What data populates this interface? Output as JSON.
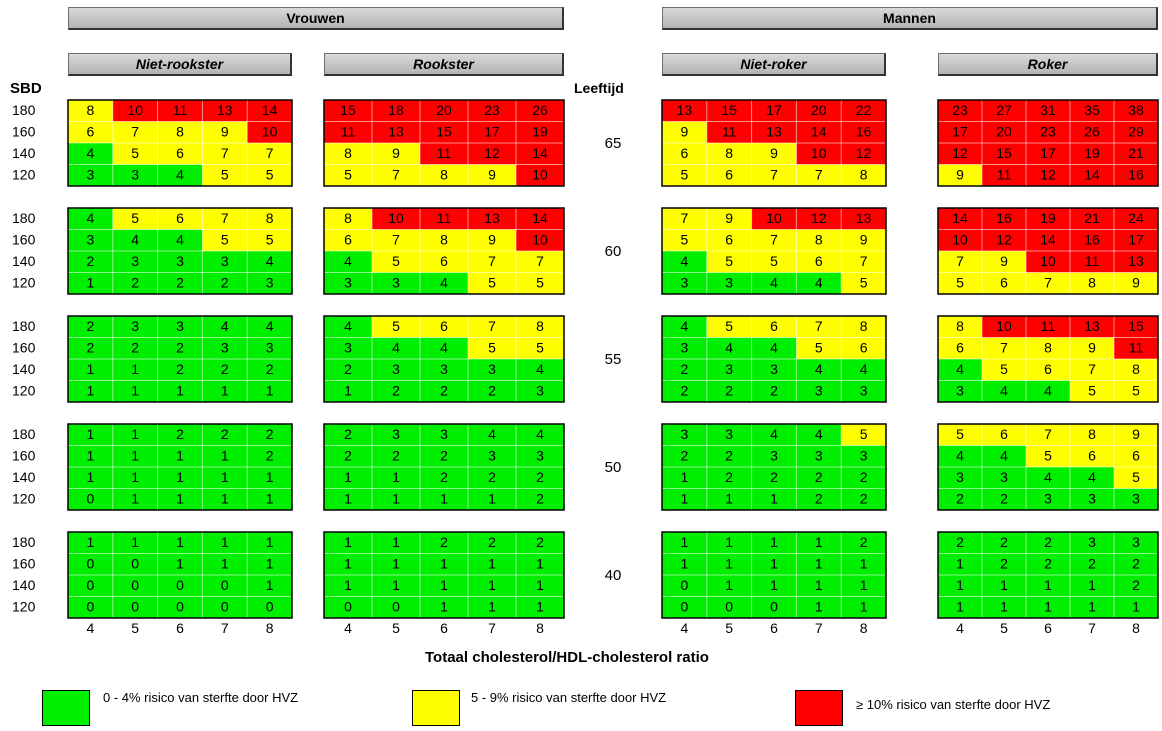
{
  "header": {
    "group_left": "Vrouwen",
    "group_right": "Mannen",
    "sub_1": "Niet-rookster",
    "sub_2": "Rookster",
    "sub_3": "Niet-roker",
    "sub_4": "Roker",
    "sbd_label": "SBD",
    "age_label": "Leeftijd",
    "xlabel": "Totaal cholesterol/HDL-cholesterol ratio"
  },
  "colors": {
    "green": "#00ee00",
    "yellow": "#ffff00",
    "red": "#ff0000"
  },
  "legend": {
    "green": "0 - 4% risico van sterfte door HVZ",
    "yellow": "5 - 9% risico van sterfte door HVZ",
    "red": "≥ 10% risico van sterfte door HVZ"
  },
  "chart_data": {
    "type": "heatmap",
    "x_ticks": [
      4,
      5,
      6,
      7,
      8
    ],
    "sbd_ticks": [
      180,
      160,
      140,
      120
    ],
    "ages": [
      65,
      60,
      55,
      50,
      40
    ],
    "panels": [
      "Niet-rookster",
      "Rookster",
      "Niet-roker",
      "Roker"
    ],
    "values": [
      [
        [
          [
            8,
            10,
            11,
            13,
            14
          ],
          [
            6,
            7,
            8,
            9,
            10
          ],
          [
            4,
            5,
            6,
            7,
            7
          ],
          [
            3,
            3,
            4,
            5,
            5
          ]
        ],
        [
          [
            15,
            18,
            20,
            23,
            26
          ],
          [
            11,
            13,
            15,
            17,
            19
          ],
          [
            8,
            9,
            11,
            12,
            14
          ],
          [
            5,
            7,
            8,
            9,
            10
          ]
        ],
        [
          [
            13,
            15,
            17,
            20,
            22
          ],
          [
            9,
            11,
            13,
            14,
            16
          ],
          [
            6,
            8,
            9,
            10,
            12
          ],
          [
            5,
            6,
            7,
            7,
            8
          ]
        ],
        [
          [
            23,
            27,
            31,
            35,
            38
          ],
          [
            17,
            20,
            23,
            26,
            29
          ],
          [
            12,
            15,
            17,
            19,
            21
          ],
          [
            9,
            11,
            12,
            14,
            16
          ]
        ]
      ],
      [
        [
          [
            4,
            5,
            6,
            7,
            8
          ],
          [
            3,
            4,
            4,
            5,
            5
          ],
          [
            2,
            3,
            3,
            3,
            4
          ],
          [
            1,
            2,
            2,
            2,
            3
          ]
        ],
        [
          [
            8,
            10,
            11,
            13,
            14
          ],
          [
            6,
            7,
            8,
            9,
            10
          ],
          [
            4,
            5,
            6,
            7,
            7
          ],
          [
            3,
            3,
            4,
            5,
            5
          ]
        ],
        [
          [
            7,
            9,
            10,
            12,
            13
          ],
          [
            5,
            6,
            7,
            8,
            9
          ],
          [
            4,
            5,
            5,
            6,
            7
          ],
          [
            3,
            3,
            4,
            4,
            5
          ]
        ],
        [
          [
            14,
            16,
            19,
            21,
            24
          ],
          [
            10,
            12,
            14,
            16,
            17
          ],
          [
            7,
            9,
            10,
            11,
            13
          ],
          [
            5,
            6,
            7,
            8,
            9
          ]
        ]
      ],
      [
        [
          [
            2,
            3,
            3,
            4,
            4
          ],
          [
            2,
            2,
            2,
            3,
            3
          ],
          [
            1,
            1,
            2,
            2,
            2
          ],
          [
            1,
            1,
            1,
            1,
            1
          ]
        ],
        [
          [
            4,
            5,
            6,
            7,
            8
          ],
          [
            3,
            4,
            4,
            5,
            5
          ],
          [
            2,
            3,
            3,
            3,
            4
          ],
          [
            1,
            2,
            2,
            2,
            3
          ]
        ],
        [
          [
            4,
            5,
            6,
            7,
            8
          ],
          [
            3,
            4,
            4,
            5,
            6
          ],
          [
            2,
            3,
            3,
            4,
            4
          ],
          [
            2,
            2,
            2,
            3,
            3
          ]
        ],
        [
          [
            8,
            10,
            11,
            13,
            15
          ],
          [
            6,
            7,
            8,
            9,
            11
          ],
          [
            4,
            5,
            6,
            7,
            8
          ],
          [
            3,
            4,
            4,
            5,
            5
          ]
        ]
      ],
      [
        [
          [
            1,
            1,
            2,
            2,
            2
          ],
          [
            1,
            1,
            1,
            1,
            2
          ],
          [
            1,
            1,
            1,
            1,
            1
          ],
          [
            0,
            1,
            1,
            1,
            1
          ]
        ],
        [
          [
            2,
            3,
            3,
            4,
            4
          ],
          [
            2,
            2,
            2,
            3,
            3
          ],
          [
            1,
            1,
            2,
            2,
            2
          ],
          [
            1,
            1,
            1,
            1,
            2
          ]
        ],
        [
          [
            3,
            3,
            4,
            4,
            5
          ],
          [
            2,
            2,
            3,
            3,
            3
          ],
          [
            1,
            2,
            2,
            2,
            2
          ],
          [
            1,
            1,
            1,
            2,
            2
          ]
        ],
        [
          [
            5,
            6,
            7,
            8,
            9
          ],
          [
            4,
            4,
            5,
            6,
            6
          ],
          [
            3,
            3,
            4,
            4,
            5
          ],
          [
            2,
            2,
            3,
            3,
            3
          ]
        ]
      ],
      [
        [
          [
            1,
            1,
            1,
            1,
            1
          ],
          [
            0,
            0,
            1,
            1,
            1
          ],
          [
            0,
            0,
            0,
            0,
            1
          ],
          [
            0,
            0,
            0,
            0,
            0
          ]
        ],
        [
          [
            1,
            1,
            2,
            2,
            2
          ],
          [
            1,
            1,
            1,
            1,
            1
          ],
          [
            1,
            1,
            1,
            1,
            1
          ],
          [
            0,
            0,
            1,
            1,
            1
          ]
        ],
        [
          [
            1,
            1,
            1,
            1,
            2
          ],
          [
            1,
            1,
            1,
            1,
            1
          ],
          [
            0,
            1,
            1,
            1,
            1
          ],
          [
            0,
            0,
            0,
            1,
            1
          ]
        ],
        [
          [
            2,
            2,
            2,
            3,
            3
          ],
          [
            1,
            2,
            2,
            2,
            2
          ],
          [
            1,
            1,
            1,
            1,
            2
          ],
          [
            1,
            1,
            1,
            1,
            1
          ]
        ]
      ]
    ],
    "color_thresholds": {
      "green_max": 4,
      "yellow_max": 9
    }
  }
}
